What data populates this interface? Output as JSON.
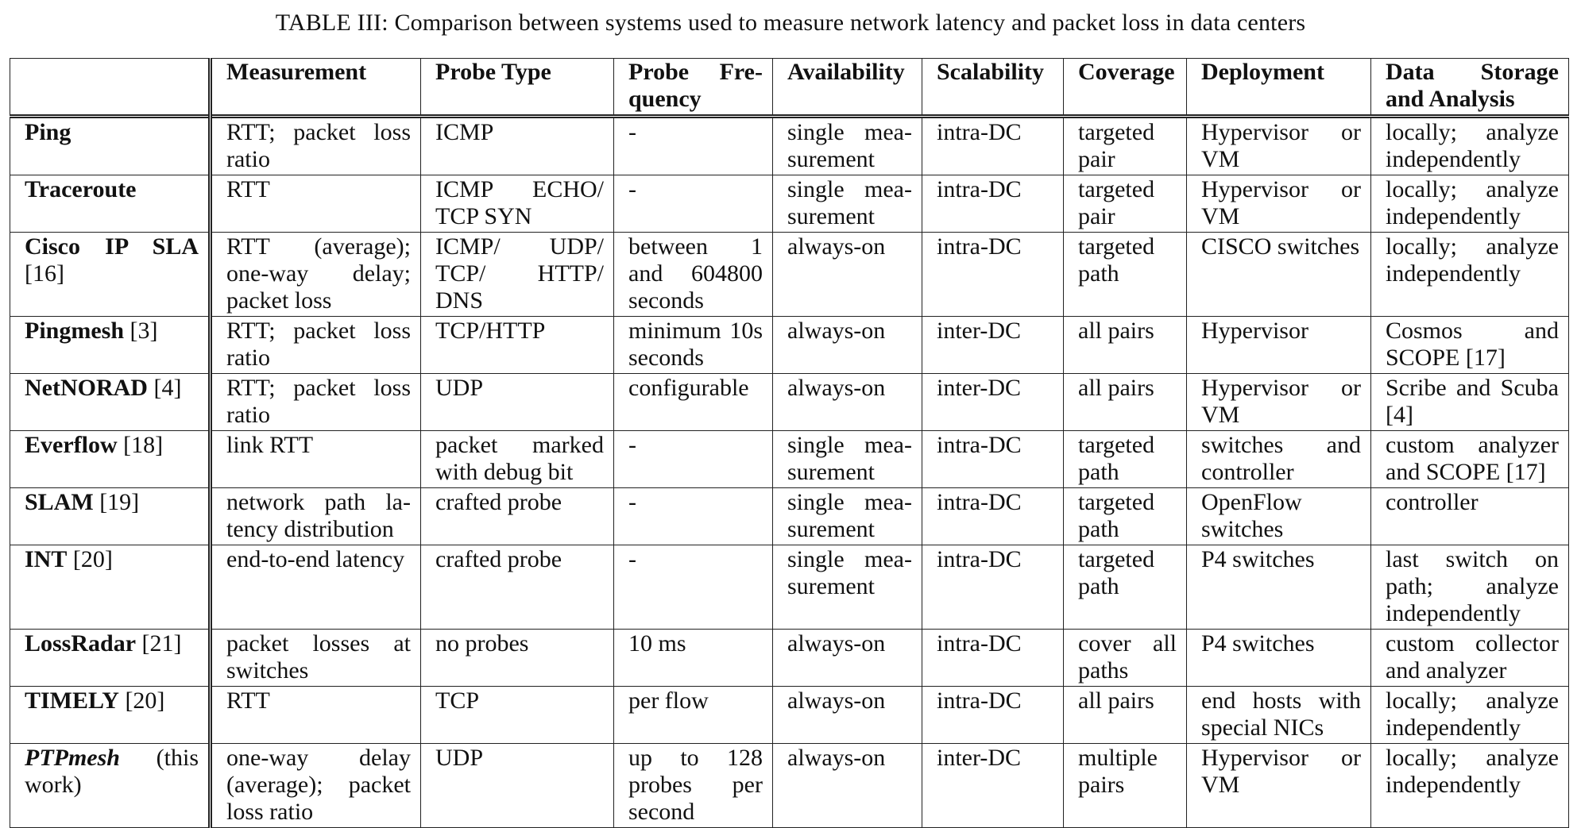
{
  "caption": "TABLE III: Comparison between systems used to measure network latency and packet loss in data centers",
  "columns": [
    "",
    "Measurement",
    "Probe Type",
    "Probe Fre-quency",
    "Availability",
    "Scalability",
    "Coverage",
    "Deployment",
    "Data Storage and Analysis"
  ],
  "rows": [
    {
      "system": "Ping",
      "ref": "",
      "measurement": "RTT; packet loss ratio",
      "probe_type": "ICMP",
      "frequency": "-",
      "availability": "single mea-surement",
      "scalability": "intra-DC",
      "coverage": "targeted pair",
      "deployment": "Hypervisor or VM",
      "storage": "locally; analyze independently"
    },
    {
      "system": "Traceroute",
      "ref": "",
      "measurement": "RTT",
      "probe_type": "ICMP ECHO/ TCP SYN",
      "frequency": "-",
      "availability": "single mea-surement",
      "scalability": "intra-DC",
      "coverage": "targeted pair",
      "deployment": "Hypervisor or VM",
      "storage": "locally; analyze independently"
    },
    {
      "system": "Cisco IP SLA",
      "ref": " [16]",
      "measurement": "RTT (average); one-way delay; packet loss",
      "probe_type": "ICMP/ UDP/ TCP/ HTTP/ DNS",
      "frequency": "between 1 and 604800 seconds",
      "availability": "always-on",
      "scalability": "intra-DC",
      "coverage": "targeted path",
      "deployment": "CISCO switches",
      "storage": "locally; analyze independently"
    },
    {
      "system": "Pingmesh",
      "ref": " [3]",
      "measurement": "RTT; packet loss ratio",
      "probe_type": "TCP/HTTP",
      "frequency": "minimum 10s seconds",
      "availability": "always-on",
      "scalability": "inter-DC",
      "coverage": "all pairs",
      "deployment": "Hypervisor",
      "storage": "Cosmos and SCOPE [17]"
    },
    {
      "system": "NetNORAD",
      "ref": " [4]",
      "measurement": "RTT; packet loss ratio",
      "probe_type": "UDP",
      "frequency": "configurable",
      "availability": "always-on",
      "scalability": "inter-DC",
      "coverage": "all pairs",
      "deployment": "Hypervisor or VM",
      "storage": "Scribe and Scuba [4]"
    },
    {
      "system": "Everflow",
      "ref": " [18]",
      "measurement": "link RTT",
      "probe_type": "packet marked with debug bit",
      "frequency": "-",
      "availability": "single mea-surement",
      "scalability": "intra-DC",
      "coverage": "targeted path",
      "deployment": "switches and controller",
      "storage": "custom analyzer and SCOPE [17]"
    },
    {
      "system": "SLAM",
      "ref": " [19]",
      "measurement": "network path la-tency distribution",
      "probe_type": "crafted probe",
      "frequency": "-",
      "availability": "single mea-surement",
      "scalability": "intra-DC",
      "coverage": "targeted path",
      "deployment": "OpenFlow switches",
      "storage": "controller"
    },
    {
      "system": "INT",
      "ref": " [20]",
      "measurement": "end-to-end latency",
      "probe_type": "crafted probe",
      "frequency": "-",
      "availability": "single mea-surement",
      "scalability": "intra-DC",
      "coverage": "targeted path",
      "deployment": "P4 switches",
      "storage": "last switch on path; analyze independently"
    },
    {
      "system": "LossRadar",
      "ref": " [21]",
      "measurement": "packet losses at switches",
      "probe_type": "no probes",
      "frequency": "10 ms",
      "availability": "always-on",
      "scalability": "intra-DC",
      "coverage": "cover all paths",
      "deployment": "P4 switches",
      "storage": "custom collector and analyzer"
    },
    {
      "system": "TIMELY",
      "ref": " [20]",
      "measurement": "RTT",
      "probe_type": "TCP",
      "frequency": "per flow",
      "availability": "always-on",
      "scalability": "intra-DC",
      "coverage": "all pairs",
      "deployment": "end hosts with special NICs",
      "storage": "locally; analyze independently"
    },
    {
      "system": "PTPmesh",
      "ref": " (this work)",
      "measurement": "one-way delay (average); packet loss ratio",
      "probe_type": "UDP",
      "frequency": "up to 128 probes per second",
      "availability": "always-on",
      "scalability": "inter-DC",
      "coverage": "multiple pairs",
      "deployment": "Hypervisor or VM",
      "storage": "locally; analyze independently"
    }
  ]
}
